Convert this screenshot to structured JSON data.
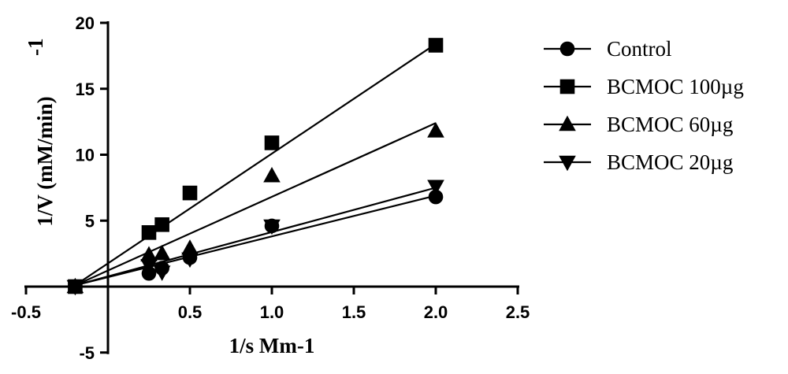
{
  "chart_data": {
    "type": "scatter",
    "title": "",
    "xlabel": "1/s Mm-1",
    "ylabel": "1/V (mM/min)",
    "ylabel_superscript": "-1",
    "xlim": [
      -0.5,
      2.5
    ],
    "ylim": [
      -5,
      20
    ],
    "xticks": [
      "-0.5",
      "0.5",
      "1.0",
      "1.5",
      "2.0",
      "2.5"
    ],
    "yticks": [
      "-5",
      "5",
      "10",
      "15",
      "20"
    ],
    "grid": false,
    "legend": "right",
    "series": [
      {
        "name": "Control",
        "marker": "circle",
        "points": [
          [
            -0.2,
            0
          ],
          [
            0.25,
            1.0
          ],
          [
            0.33,
            1.4
          ],
          [
            0.5,
            2.2
          ],
          [
            1.0,
            4.6
          ],
          [
            2.0,
            6.8
          ]
        ],
        "fit": [
          [
            -0.2,
            0.1
          ],
          [
            2.0,
            6.9
          ]
        ]
      },
      {
        "name": "BCMOC 100µg",
        "marker": "square",
        "points": [
          [
            -0.2,
            0
          ],
          [
            0.25,
            4.1
          ],
          [
            0.33,
            4.7
          ],
          [
            0.5,
            7.1
          ],
          [
            1.0,
            10.9
          ],
          [
            2.0,
            18.3
          ]
        ],
        "fit": [
          [
            -0.2,
            0.1
          ],
          [
            2.0,
            18.4
          ]
        ]
      },
      {
        "name": "BCMOC 60µg",
        "marker": "triangle-up",
        "points": [
          [
            -0.2,
            0
          ],
          [
            0.25,
            2.4
          ],
          [
            0.33,
            2.5
          ],
          [
            0.5,
            2.9
          ],
          [
            1.0,
            8.4
          ],
          [
            2.0,
            11.8
          ]
        ],
        "fit": [
          [
            -0.2,
            0.1
          ],
          [
            2.0,
            12.4
          ]
        ]
      },
      {
        "name": "BCMOC 20µg",
        "marker": "triangle-down",
        "points": [
          [
            -0.2,
            0
          ],
          [
            0.25,
            1.6
          ],
          [
            0.33,
            1.1
          ],
          [
            0.5,
            2.1
          ],
          [
            1.0,
            4.6
          ],
          [
            2.0,
            7.6
          ]
        ],
        "fit": [
          [
            -0.2,
            0.1
          ],
          [
            2.0,
            7.5
          ]
        ]
      }
    ]
  }
}
